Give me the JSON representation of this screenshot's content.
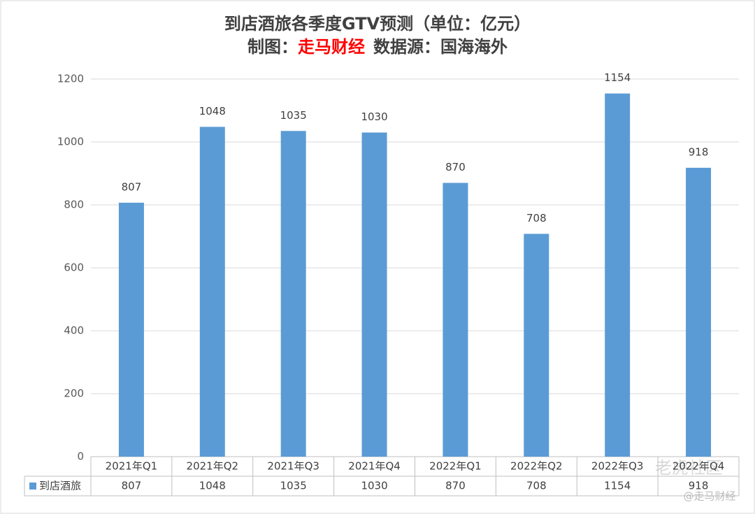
{
  "chart_data": {
    "type": "bar",
    "title": "到店酒旅各季度GTV预测（单位：亿元）",
    "subtitle_prefix": "制图：",
    "subtitle_highlight": "走马财经",
    "subtitle_suffix": "数据源：国海海外",
    "categories": [
      "2021年Q1",
      "2021年Q2",
      "2021年Q3",
      "2021年Q4",
      "2022年Q1",
      "2022年Q2",
      "2022年Q3",
      "2022年Q4"
    ],
    "series": [
      {
        "name": "到店酒旅",
        "color": "#5b9bd5",
        "values": [
          807,
          1048,
          1035,
          1030,
          870,
          708,
          1154,
          918
        ]
      }
    ],
    "ylim": [
      0,
      1200
    ],
    "yticks": [
      0,
      200,
      400,
      600,
      800,
      1000,
      1200
    ],
    "grid": true,
    "watermarks": [
      "老虎社区",
      "@走马财经"
    ]
  }
}
